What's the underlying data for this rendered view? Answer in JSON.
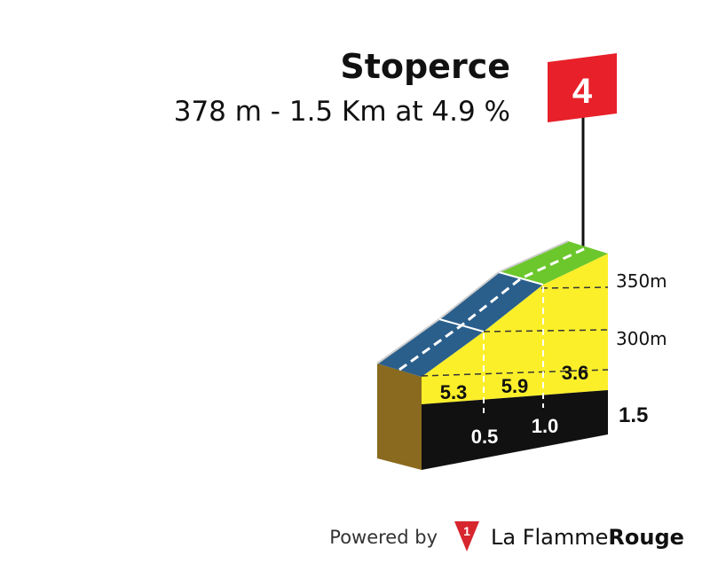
{
  "header": {
    "title": "Stoperce",
    "subtitle": "378 m - 1.5 Km at 4.9 %"
  },
  "flag": {
    "label": "4"
  },
  "profile": {
    "gradients": [
      "5.3",
      "5.9",
      "3.6"
    ],
    "distance_marks": [
      "0.5",
      "1.0"
    ],
    "total_distance": "1.5",
    "altitude_labels": [
      "350m",
      "300m"
    ]
  },
  "footer": {
    "powered_by": "Powered by",
    "brand_light": "La Flamme",
    "brand_bold": "Rouge"
  }
}
